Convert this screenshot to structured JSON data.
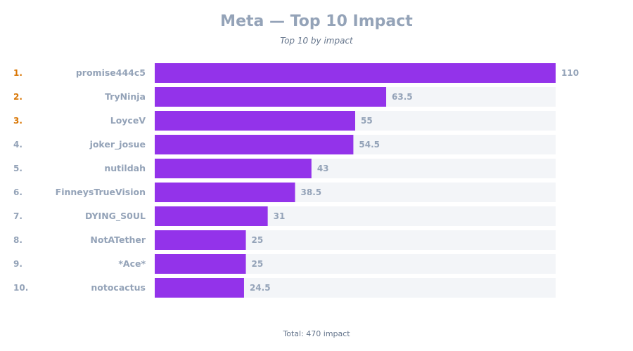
{
  "header": {
    "title": "Meta — Top 10 Impact",
    "subtitle": "Top 10 by impact"
  },
  "footer": {
    "total": "Total: 470 impact"
  },
  "colors": {
    "bar": "#9333ea",
    "track": "#f3f5f8",
    "rank_top": "#d97706",
    "rank_other": "#94a3b8",
    "label": "#94a3b8",
    "value": "#94a3b8"
  },
  "chart_data": {
    "type": "bar",
    "orientation": "horizontal",
    "title": "Meta — Top 10 Impact",
    "subtitle": "Top 10 by impact",
    "ranks": [
      "1.",
      "2.",
      "3.",
      "4.",
      "5.",
      "6.",
      "7.",
      "8.",
      "9.",
      "10."
    ],
    "categories": [
      "promise444c5",
      "TryNinja",
      "LoyceV",
      "joker_josue",
      "nutildah",
      "FinneysTrueVision",
      "DYING_S0UL",
      "NotATether",
      "*Ace*",
      "notocactus"
    ],
    "values": [
      110,
      63.5,
      55,
      54.5,
      43,
      38.5,
      31,
      25,
      25,
      24.5
    ],
    "value_labels": [
      "110",
      "63.5",
      "55",
      "54.5",
      "43",
      "38.5",
      "31",
      "25",
      "25",
      "24.5"
    ],
    "xlim": [
      0,
      110
    ],
    "grid": false,
    "legend": "none"
  }
}
